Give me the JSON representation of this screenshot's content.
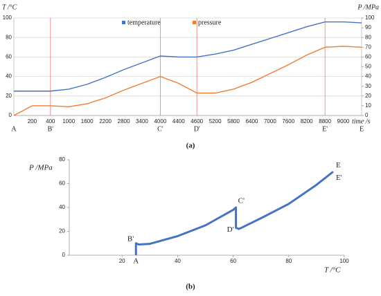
{
  "chart_data": [
    {
      "type": "line",
      "caption": "(a)",
      "ylabel": "T /°C",
      "y2label": "P /MPa",
      "xlabel": "time /s",
      "categories": [
        null,
        "200",
        "400",
        "1000",
        "1600",
        "2200",
        "2800",
        "3400",
        "4000",
        "4400",
        "4600",
        "5200",
        "5800",
        "6400",
        "7000",
        "7600",
        "8200",
        "8800",
        "9000",
        null
      ],
      "series": [
        {
          "name": "temperature",
          "color": "#4472c4",
          "values": [
            25,
            25,
            25,
            27,
            32,
            39,
            47,
            54,
            61,
            60,
            60,
            63,
            67,
            73,
            79,
            85,
            91,
            96,
            96,
            95
          ]
        },
        {
          "name": "pressure",
          "color": "#ed7d31",
          "axis": "y2",
          "values": [
            0,
            10,
            10,
            9,
            12,
            18,
            26,
            33,
            40,
            33,
            23,
            23,
            27,
            34,
            43,
            52,
            62,
            70,
            71,
            70
          ]
        }
      ],
      "ylim": [
        0,
        100
      ],
      "yticks": [
        0,
        20,
        40,
        60,
        80,
        100
      ],
      "y2lim": [
        0,
        100
      ],
      "y2ticks": [
        0,
        10,
        20,
        30,
        40,
        50,
        60,
        70,
        80,
        90,
        100
      ],
      "grid": true,
      "legend": "top",
      "annotations": [
        {
          "text": "A",
          "at": 0,
          "line": false
        },
        {
          "text": "B'",
          "at": 2,
          "line": true
        },
        {
          "text": "C'",
          "at": 8,
          "line": true
        },
        {
          "text": "D'",
          "at": 10,
          "line": true
        },
        {
          "text": "E'",
          "at": 17,
          "line": true
        },
        {
          "text": "E",
          "at": 19,
          "line": false
        }
      ],
      "annotation_color": "#e03c3c"
    },
    {
      "type": "line",
      "caption": "(b)",
      "ylabel": "P /MPa",
      "xlabel": "T /°C",
      "color": "#4472c4",
      "x": [
        25,
        25,
        26,
        30,
        40,
        50,
        60,
        61,
        61,
        62,
        63,
        70,
        80,
        90,
        96
      ],
      "values": [
        0,
        10,
        9,
        9.5,
        16,
        25,
        38,
        40,
        23,
        22,
        23,
        31,
        43,
        59,
        70
      ],
      "xlim": [
        0,
        100
      ],
      "xticks": [
        20,
        40,
        60,
        80,
        100
      ],
      "ylim": [
        0,
        80
      ],
      "yticks": [
        0,
        20,
        40,
        60,
        80
      ],
      "annotations": [
        {
          "text": "A",
          "at": 0
        },
        {
          "text": "B'",
          "at": 1
        },
        {
          "text": "C'",
          "at": 7
        },
        {
          "text": "D'",
          "at": 8
        },
        {
          "text": "E",
          "at": 14
        },
        {
          "text": "E'",
          "at": 14
        }
      ],
      "annotation_color": "#e03c3c"
    }
  ]
}
